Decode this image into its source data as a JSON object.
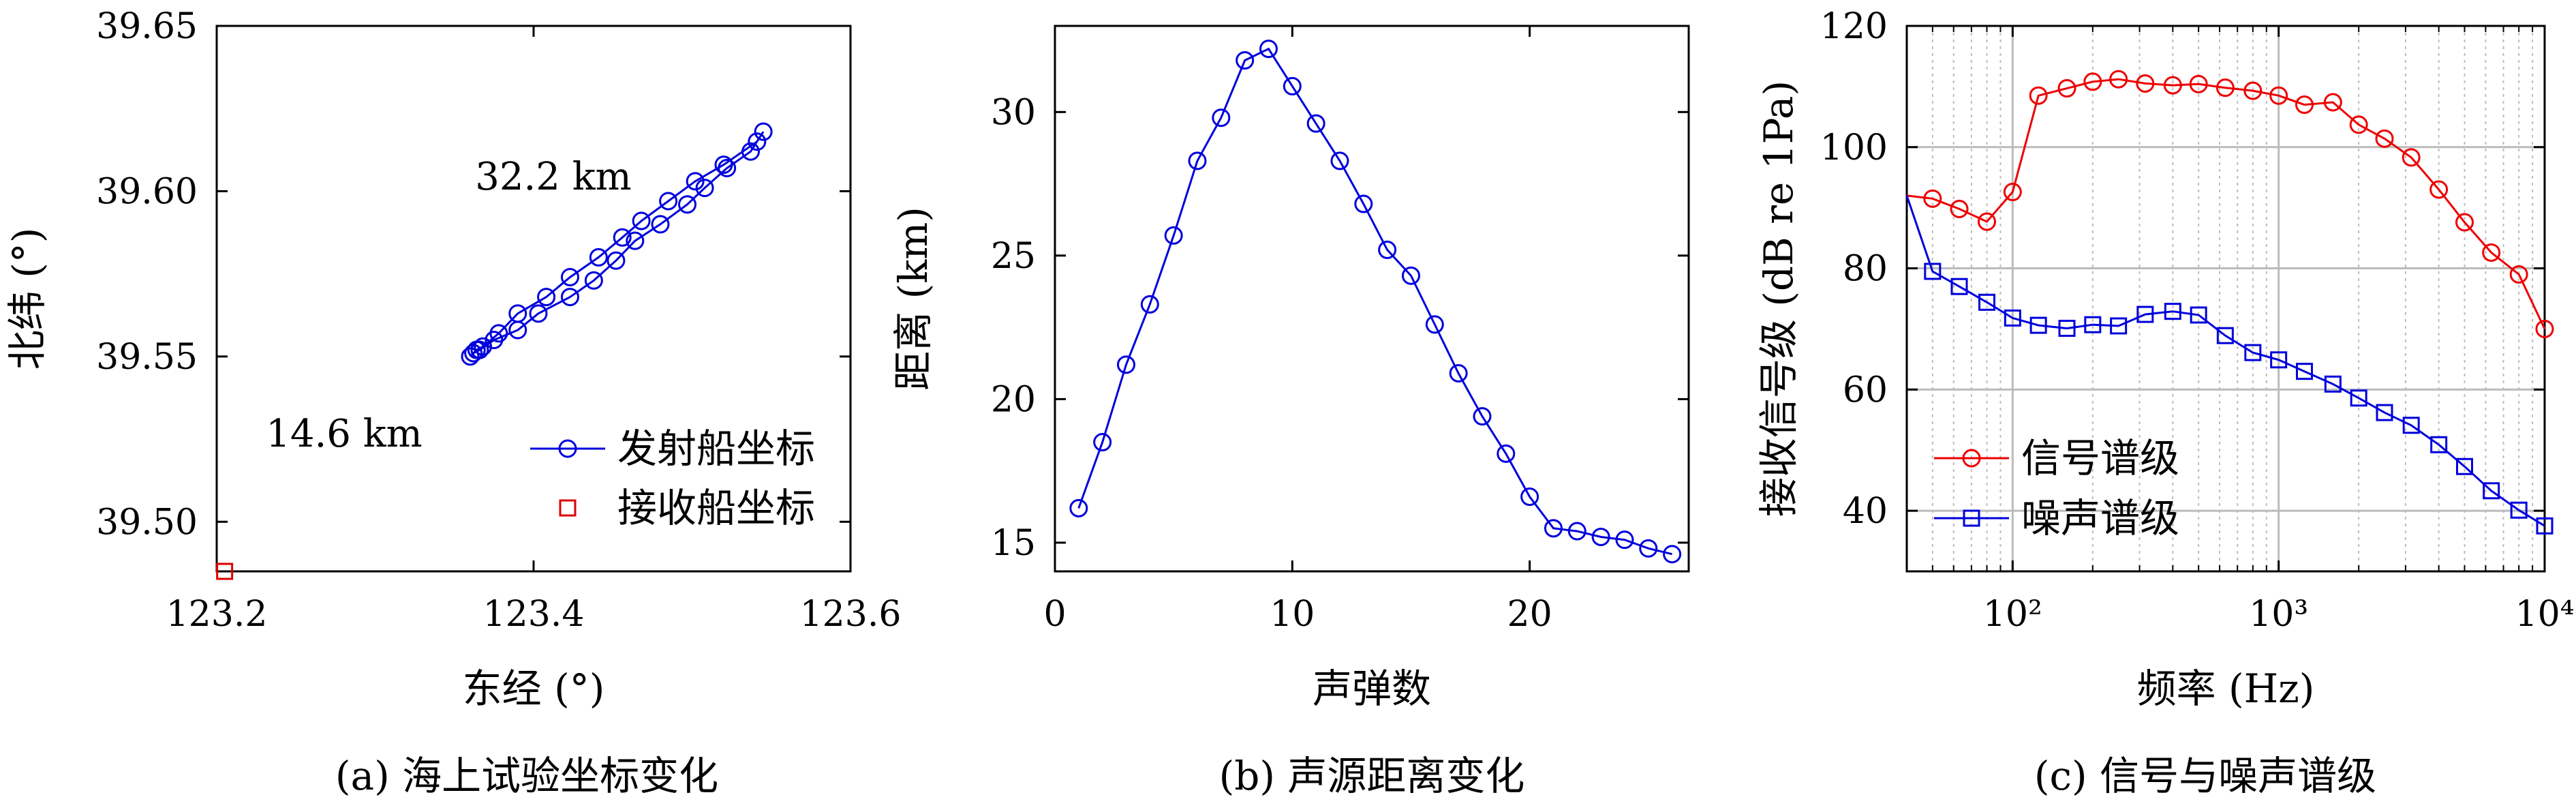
{
  "chart_data": [
    {
      "type": "scatter",
      "caption": "(a) 海上试验坐标变化",
      "xlabel": "东经 (°)",
      "ylabel": "北纬 (°)",
      "xlim": [
        123.2,
        123.6
      ],
      "ylim": [
        39.485,
        39.65
      ],
      "xticks": [
        "123.2",
        "123.4",
        "123.6"
      ],
      "yticks": [
        "39.50",
        "39.55",
        "39.60",
        "39.65"
      ],
      "legend_position": "bottom-right",
      "annotations": [
        "32.2 km",
        "14.6 km"
      ],
      "series": [
        {
          "name": "发射船坐标",
          "color": "#0000dd",
          "marker": "circle",
          "line": true,
          "x": [
            123.545,
            123.537,
            123.522,
            123.508,
            123.497,
            123.48,
            123.464,
            123.452,
            123.438,
            123.423,
            123.403,
            123.39,
            123.375,
            123.366,
            123.362,
            123.36,
            123.364,
            123.368,
            123.378,
            123.39,
            123.408,
            123.423,
            123.441,
            123.456,
            123.468,
            123.485,
            123.502,
            123.52,
            123.541
          ],
          "y": [
            39.618,
            39.612,
            39.607,
            39.601,
            39.596,
            39.59,
            39.585,
            39.579,
            39.573,
            39.568,
            39.563,
            39.558,
            39.555,
            39.552,
            39.551,
            39.55,
            39.552,
            39.553,
            39.557,
            39.563,
            39.568,
            39.574,
            39.58,
            39.586,
            39.591,
            39.597,
            39.603,
            39.608,
            39.615
          ]
        },
        {
          "name": "接收船坐标",
          "color": "#dd0000",
          "marker": "square",
          "line": false,
          "x": [
            123.205
          ],
          "y": [
            39.485
          ]
        }
      ]
    },
    {
      "type": "line",
      "caption": "(b) 声源距离变化",
      "xlabel": "声弹数",
      "ylabel": "距离 (km)",
      "xlim": [
        0,
        26.7
      ],
      "ylim": [
        14,
        33
      ],
      "xticks": [
        "0",
        "10",
        "20"
      ],
      "yticks": [
        "15",
        "20",
        "25",
        "30"
      ],
      "series": [
        {
          "name": "",
          "color": "#0000dd",
          "marker": "circle",
          "x": [
            1,
            2,
            3,
            4,
            5,
            6,
            7,
            8,
            9,
            10,
            11,
            12,
            13,
            14,
            15,
            16,
            17,
            18,
            19,
            20,
            21,
            22,
            23,
            24,
            25,
            26
          ],
          "y": [
            16.2,
            18.5,
            21.2,
            23.3,
            25.7,
            28.3,
            29.8,
            31.8,
            32.2,
            30.9,
            29.6,
            28.3,
            26.8,
            25.2,
            24.3,
            22.6,
            20.9,
            19.4,
            18.1,
            16.6,
            15.5,
            15.4,
            15.2,
            15.1,
            14.8,
            14.6
          ]
        }
      ]
    },
    {
      "type": "line",
      "caption": "(c) 信号与噪声谱级",
      "xlabel": "频率 (Hz)",
      "ylabel": "接收信号级 (dB re 1Pa)",
      "xscale": "log",
      "xlim": [
        40,
        10000
      ],
      "ylim": [
        30,
        120
      ],
      "xticks": [
        "10²",
        "10³",
        "10⁴"
      ],
      "yticks": [
        "40",
        "60",
        "80",
        "100",
        "120"
      ],
      "grid": true,
      "legend_position": "bottom-left",
      "series": [
        {
          "name": "信号谱级",
          "color": "#ee0000",
          "marker": "circle",
          "x": [
            40,
            50,
            63,
            80,
            100,
            125,
            160,
            200,
            250,
            315,
            400,
            500,
            630,
            800,
            1000,
            1250,
            1600,
            2000,
            2500,
            3150,
            4000,
            5000,
            6300,
            8000,
            10000
          ],
          "y": [
            92,
            91.5,
            89.8,
            87.7,
            92.6,
            108.5,
            109.7,
            110.8,
            111.2,
            110.5,
            110.2,
            110.4,
            109.8,
            109.3,
            108.5,
            107.0,
            107.4,
            103.7,
            101.4,
            98.3,
            93.0,
            87.6,
            82.6,
            79.0,
            70.0
          ]
        },
        {
          "name": "噪声谱级",
          "color": "#0000dd",
          "marker": "square",
          "x": [
            40,
            50,
            63,
            80,
            100,
            125,
            160,
            200,
            250,
            315,
            400,
            500,
            630,
            800,
            1000,
            1250,
            1600,
            2000,
            2500,
            3150,
            4000,
            5000,
            6300,
            8000,
            10000
          ],
          "y": [
            92,
            79.5,
            77.0,
            74.4,
            71.8,
            70.6,
            70.1,
            70.7,
            70.5,
            72.4,
            72.9,
            72.3,
            68.9,
            66.1,
            64.9,
            63.0,
            60.9,
            58.6,
            56.2,
            54.1,
            50.9,
            47.3,
            43.3,
            40.1,
            37.5
          ]
        }
      ]
    }
  ]
}
